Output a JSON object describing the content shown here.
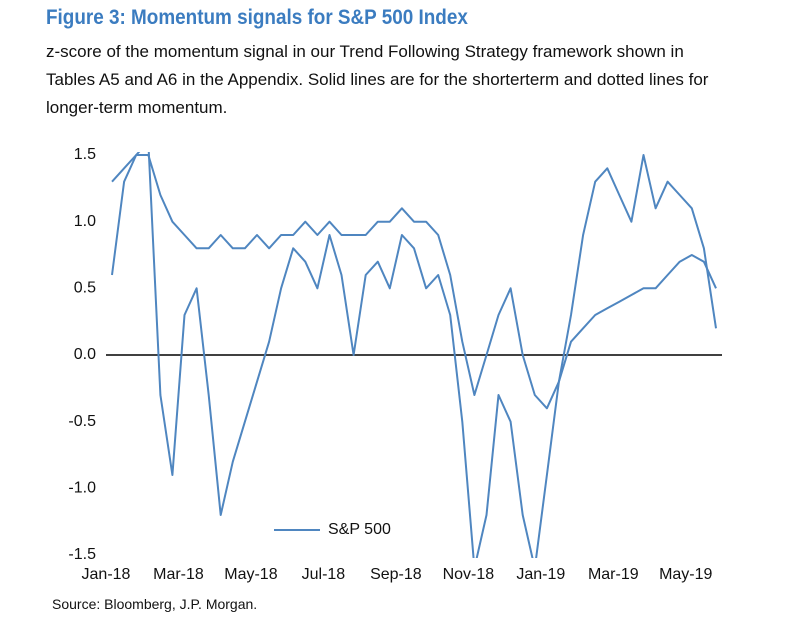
{
  "chart_data": {
    "type": "line",
    "title": "Figure 3: Momentum signals for S&P 500 Index",
    "subtitle": "z-score of the momentum signal in our Trend Following Strategy framework shown in Tables A5 and A6 in the Appendix. Solid lines are for the shorterterm and dotted lines for longer-term momentum.",
    "source": "Source: Bloomberg, J.P. Morgan.",
    "categories": [
      "Jan-18",
      null,
      null,
      null,
      null,
      null,
      "Mar-18",
      null,
      null,
      null,
      null,
      null,
      "May-18",
      null,
      null,
      null,
      null,
      null,
      "Jul-18",
      null,
      null,
      null,
      null,
      null,
      "Sep-18",
      null,
      null,
      null,
      null,
      null,
      "Nov-18",
      null,
      null,
      null,
      null,
      null,
      "Jan-19",
      null,
      null,
      null,
      null,
      null,
      "Mar-19",
      null,
      null,
      null,
      null,
      null,
      "May-19",
      null,
      null
    ],
    "series": [
      {
        "name": "S&P 500",
        "color": "#4f86c0",
        "values": [
          0.6,
          1.3,
          1.5,
          1.6,
          -0.3,
          -0.9,
          0.3,
          0.5,
          -0.3,
          -1.2,
          -0.8,
          -0.5,
          -0.2,
          0.1,
          0.5,
          0.8,
          0.7,
          0.5,
          0.9,
          0.6,
          0.0,
          0.6,
          0.7,
          0.5,
          0.9,
          0.8,
          0.5,
          0.6,
          0.3,
          -0.5,
          -1.6,
          -1.2,
          -0.3,
          -0.5,
          -1.2,
          -1.6,
          -0.9,
          -0.2,
          0.3,
          0.9,
          1.3,
          1.4,
          1.2,
          1.0,
          1.5,
          1.1,
          1.3,
          1.2,
          1.1,
          0.8,
          0.2
        ]
      },
      {
        "color": "#4f86c0",
        "values": [
          1.3,
          1.4,
          1.5,
          1.5,
          1.2,
          1.0,
          0.9,
          0.8,
          0.8,
          0.9,
          0.8,
          0.8,
          0.9,
          0.8,
          0.9,
          0.9,
          1.0,
          0.9,
          1.0,
          0.9,
          0.9,
          0.9,
          1.0,
          1.0,
          1.1,
          1.0,
          1.0,
          0.9,
          0.6,
          0.1,
          -0.3,
          0.0,
          0.3,
          0.5,
          0.0,
          -0.3,
          -0.4,
          -0.2,
          0.1,
          0.2,
          0.3,
          0.35,
          0.4,
          0.45,
          0.5,
          0.5,
          0.6,
          0.7,
          0.75,
          0.7,
          0.5
        ]
      }
    ],
    "ylim": [
      -1.5,
      1.5
    ],
    "yticks": [
      {
        "value": -1.5,
        "label": "-1.5"
      },
      {
        "value": -1,
        "label": "-1.0"
      },
      {
        "value": -0.5,
        "label": "-0.5"
      },
      {
        "value": 0,
        "label": "0.0"
      },
      {
        "value": 0.5,
        "label": "0.5"
      },
      {
        "value": 1,
        "label": "1.0"
      },
      {
        "value": 1.5,
        "label": "1.5"
      }
    ],
    "legend": "lower-center"
  }
}
